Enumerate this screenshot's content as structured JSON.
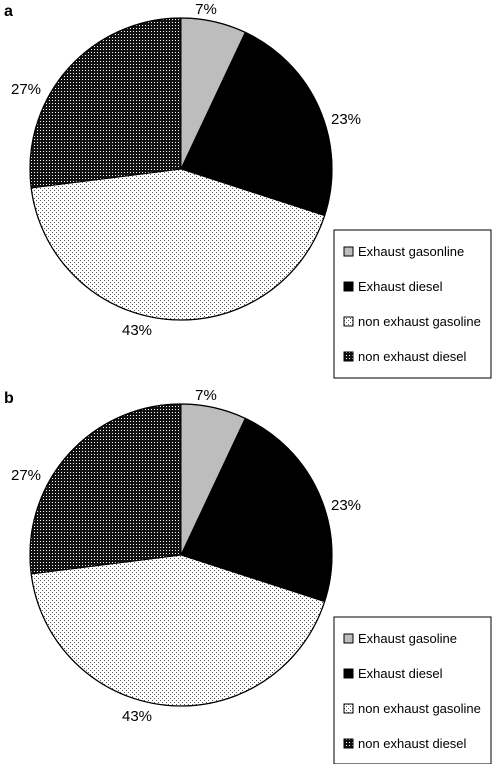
{
  "chart_data": [
    {
      "panel": "a",
      "type": "pie",
      "categories": [
        "Exhaust gasonline",
        "Exhaust diesel",
        "non exhaust gasoline",
        "non exhaust diesel"
      ],
      "values": [
        7,
        23,
        43,
        27
      ],
      "labels": [
        "7%",
        "23%",
        "43%",
        "27%"
      ],
      "legend_position": "right",
      "fills": [
        "light-gray",
        "black",
        "light-dots",
        "dark-dots"
      ]
    },
    {
      "panel": "b",
      "type": "pie",
      "categories": [
        "Exhaust gasoline",
        "Exhaust diesel",
        "non exhaust gasoline",
        "non exhaust diesel"
      ],
      "values": [
        7,
        23,
        43,
        27
      ],
      "labels": [
        "7%",
        "23%",
        "43%",
        "27%"
      ],
      "legend_position": "right",
      "fills": [
        "light-gray",
        "black",
        "light-dots",
        "dark-dots"
      ]
    }
  ],
  "colors": {
    "light_gray": "#bdbdbd",
    "black": "#000000",
    "outline": "#000000"
  }
}
